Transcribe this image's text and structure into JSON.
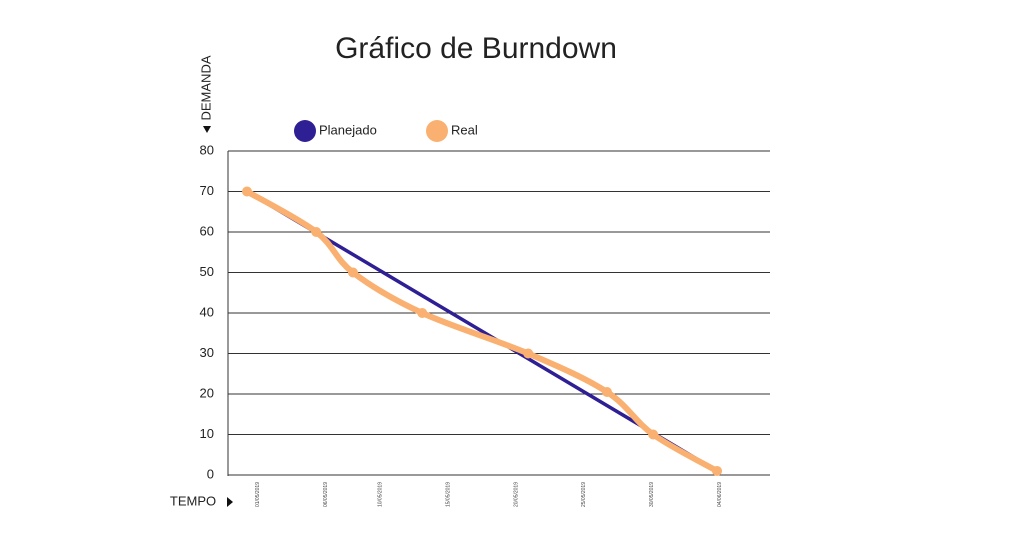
{
  "chart_data": {
    "type": "line",
    "title": "Gráfico de Burndown",
    "y_label": "DEMANDA",
    "x_label": "TEMPO",
    "xlim": [
      -1.2,
      38.7
    ],
    "ylim": [
      0,
      80
    ],
    "yticks": [
      0,
      10,
      20,
      30,
      40,
      50,
      60,
      70,
      80
    ],
    "xticks": [
      {
        "value": 1,
        "label": "01/05/2019"
      },
      {
        "value": 6,
        "label": "06/05/2019"
      },
      {
        "value": 10,
        "label": "10/05/2019"
      },
      {
        "value": 15,
        "label": "15/05/2019"
      },
      {
        "value": 20,
        "label": "20/05/2019"
      },
      {
        "value": 25,
        "label": "25/05/2019"
      },
      {
        "value": 30,
        "label": "30/05/2019"
      },
      {
        "value": 35,
        "label": "04/06/2019"
      }
    ],
    "grid": true,
    "series": [
      {
        "name": "Planejado",
        "color": "#2e1f94",
        "smooth": false,
        "markers": false,
        "x": [
          0.2,
          34.8
        ],
        "values": [
          70,
          1
        ]
      },
      {
        "name": "Real",
        "color": "#f9b070",
        "smooth": true,
        "markers": true,
        "x": [
          0.2,
          5.3,
          8,
          13.1,
          20.9,
          26.7,
          30.1,
          34.8
        ],
        "values": [
          70,
          60,
          50,
          40,
          30,
          20.5,
          10,
          1
        ]
      }
    ]
  }
}
